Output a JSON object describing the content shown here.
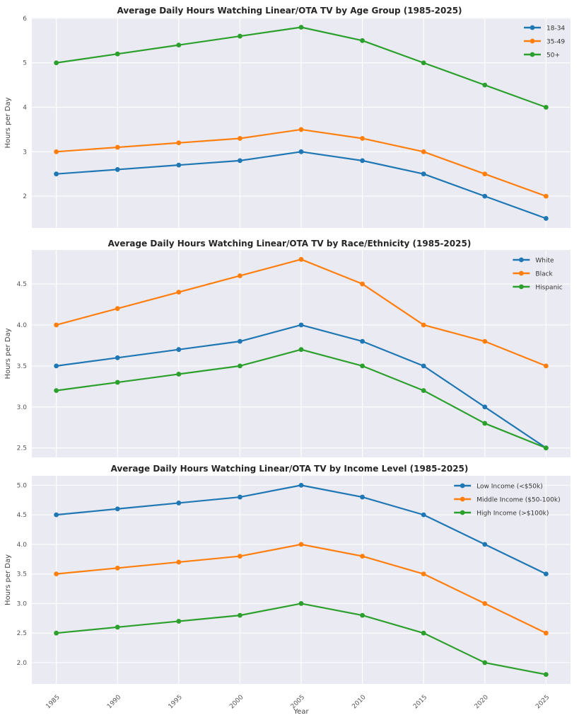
{
  "figure": {
    "background": "#ffffff"
  },
  "styles": {
    "plot_bg": "#eaeaf2",
    "grid_color": "#ffffff",
    "title_color": "#262626",
    "tick_label_color": "#555555",
    "axis_label_color": "#444444",
    "legend_text_color": "#333333",
    "series_colors": [
      "#1f77b4",
      "#ff7f0e",
      "#2ca02c"
    ]
  },
  "chart_data": [
    {
      "type": "line",
      "title": "Average Daily Hours Watching Linear/OTA TV by Age Group (1985-2025)",
      "xlabel": "",
      "ylabel": "Hours per Day",
      "x": [
        1985,
        1990,
        1995,
        2000,
        2005,
        2010,
        2015,
        2020,
        2025
      ],
      "series": [
        {
          "name": "18-34",
          "values": [
            2.5,
            2.6,
            2.7,
            2.8,
            3.0,
            2.8,
            2.5,
            2.0,
            1.5
          ]
        },
        {
          "name": "35-49",
          "values": [
            3.0,
            3.1,
            3.2,
            3.3,
            3.5,
            3.3,
            3.0,
            2.5,
            2.0
          ]
        },
        {
          "name": "50+",
          "values": [
            5.0,
            5.2,
            5.4,
            5.6,
            5.8,
            5.5,
            5.0,
            4.5,
            4.0
          ]
        }
      ],
      "yticks": [
        2,
        3,
        4,
        5,
        6
      ],
      "ytick_labels": [
        "2",
        "3",
        "4",
        "5",
        "6"
      ],
      "ylim": [
        1.285,
        6.015
      ],
      "xlim": [
        1983,
        2027
      ],
      "grid": true,
      "legend_position": "top-right",
      "show_xtick_labels": false
    },
    {
      "type": "line",
      "title": "Average Daily Hours Watching Linear/OTA TV by Race/Ethnicity (1985-2025)",
      "xlabel": "",
      "ylabel": "Hours per Day",
      "x": [
        1985,
        1990,
        1995,
        2000,
        2005,
        2010,
        2015,
        2020,
        2025
      ],
      "series": [
        {
          "name": "White",
          "values": [
            3.5,
            3.6,
            3.7,
            3.8,
            4.0,
            3.8,
            3.5,
            3.0,
            2.5
          ]
        },
        {
          "name": "Black",
          "values": [
            4.0,
            4.2,
            4.4,
            4.6,
            4.8,
            4.5,
            4.0,
            3.8,
            3.5
          ]
        },
        {
          "name": "Hispanic",
          "values": [
            3.2,
            3.3,
            3.4,
            3.5,
            3.7,
            3.5,
            3.2,
            2.8,
            2.5
          ]
        }
      ],
      "yticks": [
        2.5,
        3.0,
        3.5,
        4.0,
        4.5
      ],
      "ytick_labels": [
        "2.5",
        "3.0",
        "3.5",
        "4.0",
        "4.5"
      ],
      "ylim": [
        2.385,
        4.915
      ],
      "xlim": [
        1983,
        2027
      ],
      "grid": true,
      "legend_position": "top-right",
      "show_xtick_labels": false
    },
    {
      "type": "line",
      "title": "Average Daily Hours Watching Linear/OTA TV by Income Level (1985-2025)",
      "xlabel": "Year",
      "ylabel": "Hours per Day",
      "x": [
        1985,
        1990,
        1995,
        2000,
        2005,
        2010,
        2015,
        2020,
        2025
      ],
      "xtick_labels": [
        "1985",
        "1990",
        "1995",
        "2000",
        "2005",
        "2010",
        "2015",
        "2020",
        "2025"
      ],
      "series": [
        {
          "name": "Low Income (<$50k)",
          "values": [
            4.5,
            4.6,
            4.7,
            4.8,
            5.0,
            4.8,
            4.5,
            4.0,
            3.5
          ]
        },
        {
          "name": "Middle Income ($50-100k)",
          "values": [
            3.5,
            3.6,
            3.7,
            3.8,
            4.0,
            3.8,
            3.5,
            3.0,
            2.5
          ]
        },
        {
          "name": "High Income (>$100k)",
          "values": [
            2.5,
            2.6,
            2.7,
            2.8,
            3.0,
            2.8,
            2.5,
            2.0,
            1.8
          ]
        }
      ],
      "yticks": [
        2.0,
        2.5,
        3.0,
        3.5,
        4.0,
        4.5,
        5.0
      ],
      "ytick_labels": [
        "2.0",
        "2.5",
        "3.0",
        "3.5",
        "4.0",
        "4.5",
        "5.0"
      ],
      "ylim": [
        1.64,
        5.16
      ],
      "xlim": [
        1983,
        2027
      ],
      "grid": true,
      "legend_position": "top-right",
      "show_xtick_labels": true
    }
  ]
}
